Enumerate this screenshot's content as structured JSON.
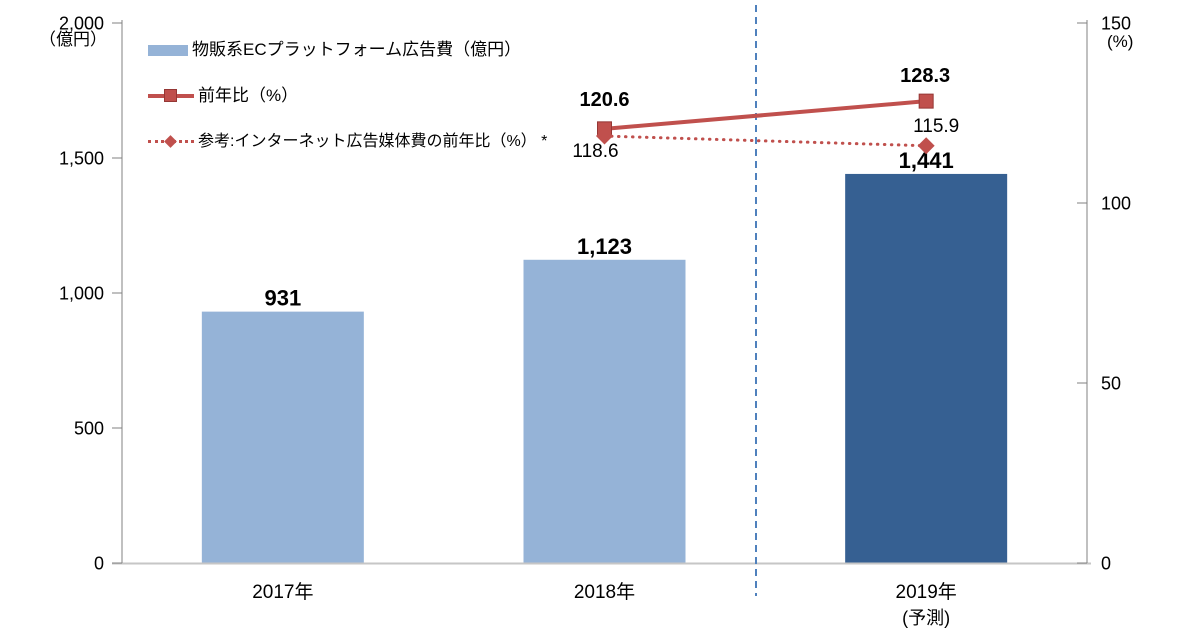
{
  "chart_data": {
    "type": "bar",
    "combo": "bar+line",
    "title": "",
    "categories": [
      "2017年",
      "2018年",
      "2019年"
    ],
    "category_sublabels": [
      "",
      "",
      "(予測)"
    ],
    "bars": {
      "name": "物販系ECプラットフォーム広告費（億円）",
      "values": [
        931,
        1123,
        1441
      ],
      "labels": [
        "931",
        "1,123",
        "1,441"
      ],
      "colors": [
        "#95B3D7",
        "#95B3D7",
        "#366092"
      ]
    },
    "lines": [
      {
        "name": "前年比（%）",
        "style": "solid",
        "marker": "square",
        "color": "#C0504D",
        "points": [
          {
            "category": "2018年",
            "x_index": 1,
            "value": 120.6,
            "label": "120.6"
          },
          {
            "category": "2019年",
            "x_index": 2,
            "value": 128.3,
            "label": "128.3"
          }
        ]
      },
      {
        "name": "参考:インターネット広告媒体費の前年比（%） *",
        "style": "dotted",
        "marker": "diamond",
        "color": "#C0504D",
        "points": [
          {
            "category": "2018年",
            "x_index": 1,
            "value": 118.6,
            "label": "118.6"
          },
          {
            "category": "2019年",
            "x_index": 2,
            "value": 115.9,
            "label": "115.9"
          }
        ]
      }
    ],
    "axes": {
      "left": {
        "unit": "（億円）",
        "range": [
          0,
          2000
        ],
        "ticks": [
          {
            "value": 0,
            "label": "0"
          },
          {
            "value": 500,
            "label": "500"
          },
          {
            "value": 1000,
            "label": "1,000"
          },
          {
            "value": 1500,
            "label": "1,500"
          },
          {
            "value": 2000,
            "label": "2,000"
          }
        ]
      },
      "right": {
        "unit": "(%)",
        "range": [
          0,
          150
        ],
        "ticks": [
          {
            "value": 0,
            "label": "0"
          },
          {
            "value": 50,
            "label": "50"
          },
          {
            "value": 100,
            "label": "100"
          },
          {
            "value": 150,
            "label": "150"
          }
        ]
      }
    },
    "forecast_divider": {
      "between_categories": [
        "2018年",
        "2019年"
      ],
      "style": "dashed"
    },
    "legend_position": "top-left-inside",
    "grid": false
  },
  "colors": {
    "bar_light": "#95B3D7",
    "bar_dark": "#366092",
    "series_red": "#C0504D",
    "marker_stroke": "#953735",
    "divider_blue": "#4F81BD",
    "axis_line": "#808080",
    "baseline": "#C6C6C6",
    "text": "#000000"
  }
}
